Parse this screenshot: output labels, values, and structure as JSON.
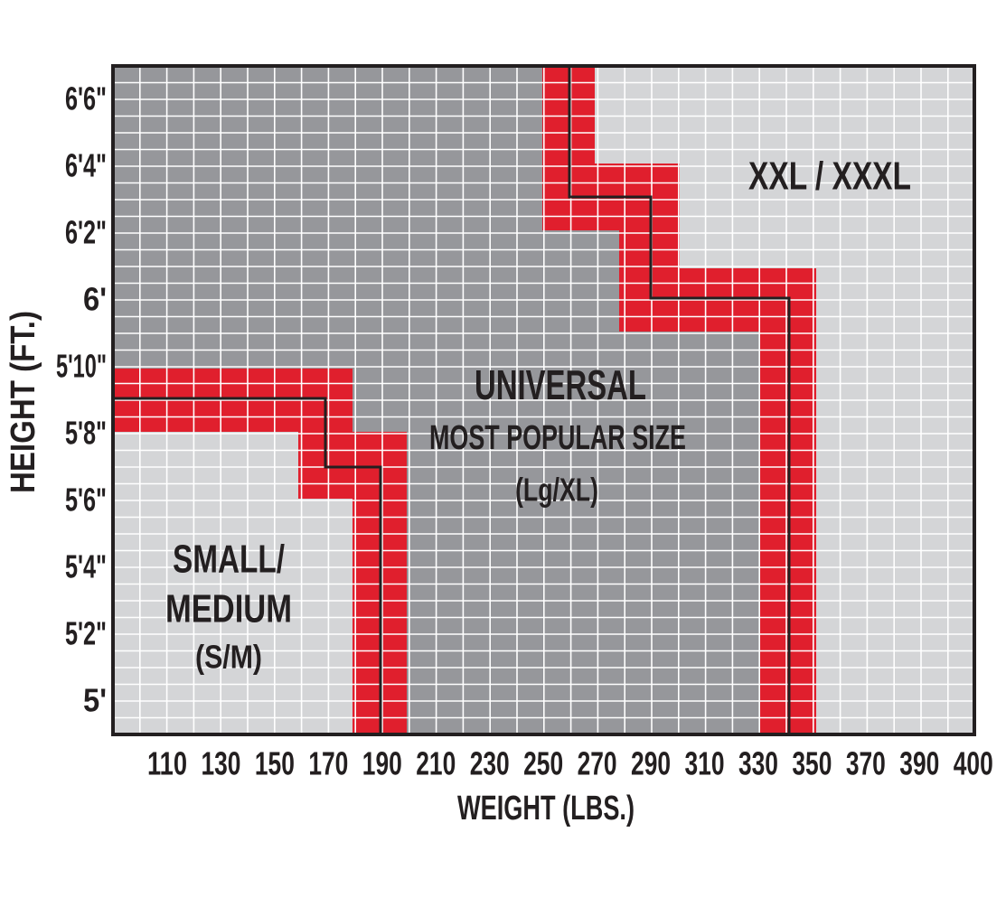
{
  "axes": {
    "x_title": "WEIGHT (LBS.)",
    "x_ticks": [
      "110",
      "130",
      "150",
      "170",
      "190",
      "210",
      "230",
      "250",
      "270",
      "290",
      "310",
      "330",
      "350",
      "370",
      "390",
      "400"
    ],
    "y_title": "HEIGHT (FT.)",
    "y_ticks": [
      "6'6\"",
      "6'4\"",
      "6'2\"",
      "6'",
      "5'10\"",
      "5'8\"",
      "5'6\"",
      "5'4\"",
      "5'2\"",
      "5'"
    ]
  },
  "regions": [
    {
      "lines": [
        "SMALL/",
        "MEDIUM",
        "(S/M)"
      ]
    },
    {
      "lines": [
        "UNIVERSAL",
        "MOST POPULAR SIZE",
        "(Lg/XL)"
      ]
    },
    {
      "lines": [
        "XXL / XXXL"
      ]
    }
  ]
}
